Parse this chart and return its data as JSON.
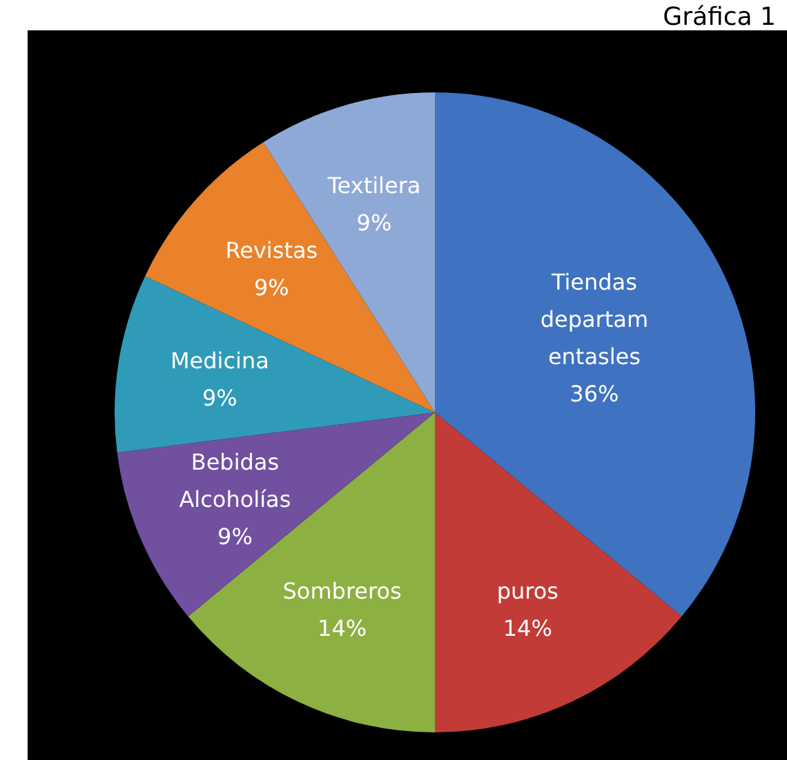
{
  "chart_data": {
    "type": "pie",
    "title": "Gráfica 1",
    "categories": [
      "Tiendas departamentasles",
      "puros",
      "Sombreros",
      "Bebidas Alcoholías",
      "Medicina",
      "Revistas",
      "Textilera"
    ],
    "values": [
      36,
      14,
      14,
      9,
      9,
      9,
      9
    ],
    "colors": [
      "#3f72c0",
      "#c23b37",
      "#8db043",
      "#7150a0",
      "#2f9bb8",
      "#e9822b",
      "#8fa9d6"
    ],
    "value_labels": [
      "36%",
      "14%",
      "14%",
      "9%",
      "9%",
      "9%",
      "9%"
    ],
    "legend": false
  }
}
